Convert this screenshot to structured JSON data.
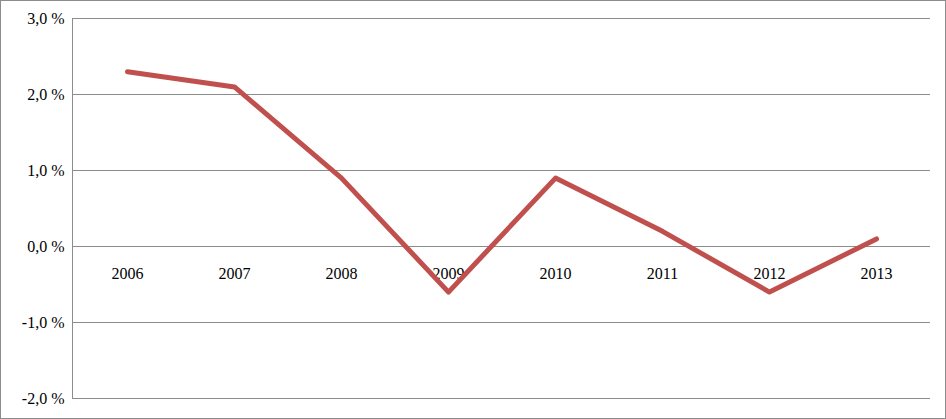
{
  "chart_data": {
    "type": "line",
    "categories": [
      "2006",
      "2007",
      "2008",
      "2009",
      "2010",
      "2011",
      "2012",
      "2013"
    ],
    "values": [
      2.3,
      2.1,
      0.9,
      -0.6,
      0.9,
      0.2,
      -0.6,
      0.1
    ],
    "color": "#c0504d",
    "ylim": [
      -2.0,
      3.0
    ],
    "yticks": [
      {
        "value": -2.0,
        "label": "-2,0 %"
      },
      {
        "value": -1.0,
        "label": "-1,0 %"
      },
      {
        "value": 0.0,
        "label": "0,0 %"
      },
      {
        "value": 1.0,
        "label": "1,0 %"
      },
      {
        "value": 2.0,
        "label": "2,0 %"
      },
      {
        "value": 3.0,
        "label": "3,0 %"
      }
    ],
    "grid": true
  }
}
